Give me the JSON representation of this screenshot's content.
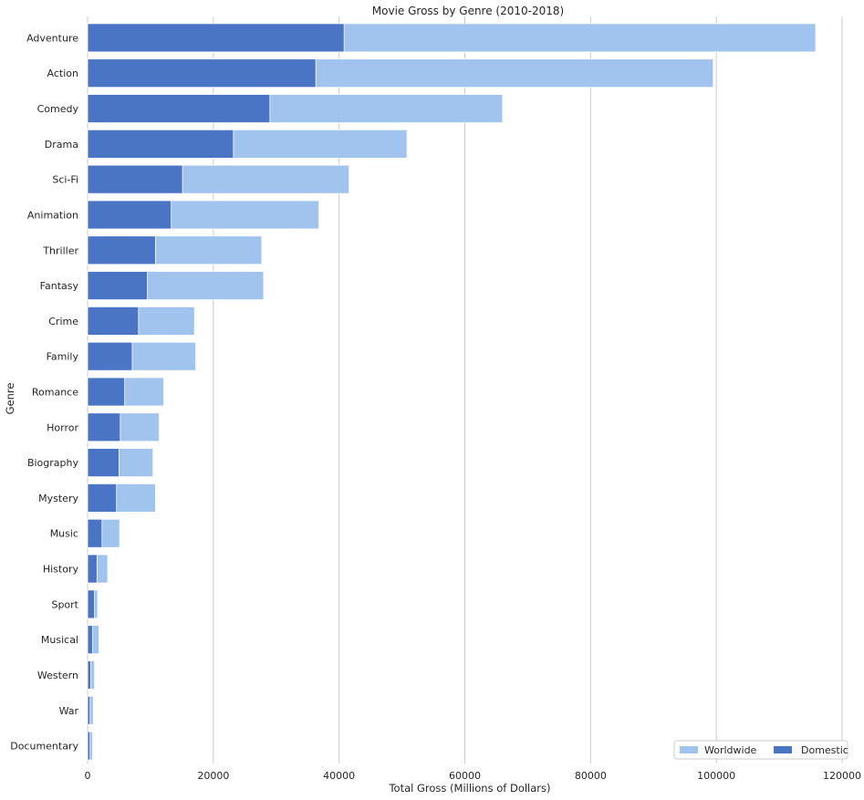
{
  "chart_data": {
    "type": "bar",
    "orientation": "horizontal",
    "title": "Movie Gross by Genre (2010-2018)",
    "xlabel": "Total Gross (Millions of Dollars)",
    "ylabel": "Genre",
    "xlim": [
      0,
      120000
    ],
    "xticks": [
      0,
      20000,
      40000,
      60000,
      80000,
      100000,
      120000
    ],
    "grid": "vertical",
    "legend_position": "bottom-right",
    "categories": [
      "Adventure",
      "Action",
      "Comedy",
      "Drama",
      "Sci-Fi",
      "Animation",
      "Thriller",
      "Fantasy",
      "Crime",
      "Family",
      "Romance",
      "Horror",
      "Biography",
      "Mystery",
      "Music",
      "History",
      "Sport",
      "Musical",
      "Western",
      "War",
      "Documentary"
    ],
    "series": [
      {
        "name": "Worldwide",
        "color": "#a1c4ee",
        "values": [
          115800,
          99500,
          66000,
          50800,
          41600,
          36800,
          27700,
          28000,
          17000,
          17200,
          12100,
          11400,
          10400,
          10800,
          5100,
          3200,
          1600,
          1800,
          1100,
          900,
          800
        ]
      },
      {
        "name": "Domestic",
        "color": "#4a75c4",
        "values": [
          40800,
          36300,
          29000,
          23200,
          15100,
          13300,
          10800,
          9500,
          8100,
          7100,
          5900,
          5200,
          5000,
          4600,
          2300,
          1500,
          1100,
          800,
          500,
          400,
          400
        ]
      }
    ]
  }
}
